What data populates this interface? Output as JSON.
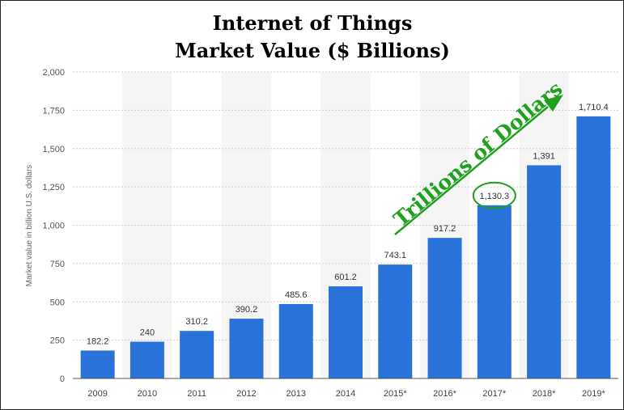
{
  "chart_data": {
    "type": "bar",
    "title_line1": "Internet of Things",
    "title_line2": "Market Value ($ Billions)",
    "xlabel": "",
    "ylabel": "Market value in billion U.S. dollars",
    "categories": [
      "2009",
      "2010",
      "2011",
      "2012",
      "2013",
      "2014",
      "2015*",
      "2016*",
      "2017*",
      "2018*",
      "2019*"
    ],
    "values": [
      182.2,
      240,
      310.2,
      390.2,
      485.6,
      601.2,
      743.1,
      917.2,
      1130.3,
      1391,
      1710.4
    ],
    "value_labels": [
      "182.2",
      "240",
      "310.2",
      "390.2",
      "485.6",
      "601.2",
      "743.1",
      "917.2",
      "1,130.3",
      "1,391",
      "1,710.4"
    ],
    "ylim": [
      0,
      2000
    ],
    "yticks": [
      0,
      250,
      500,
      750,
      1000,
      1250,
      1500,
      1750,
      2000
    ],
    "ytick_labels": [
      "0",
      "250",
      "500",
      "750",
      "1,000",
      "1,250",
      "1,500",
      "1,750",
      "2,000"
    ],
    "grid": true,
    "bar_color": "#2872d9",
    "annotation": {
      "text": "Trillions of Dollars",
      "color": "#1fa01f",
      "circled_category": "2017*"
    }
  }
}
